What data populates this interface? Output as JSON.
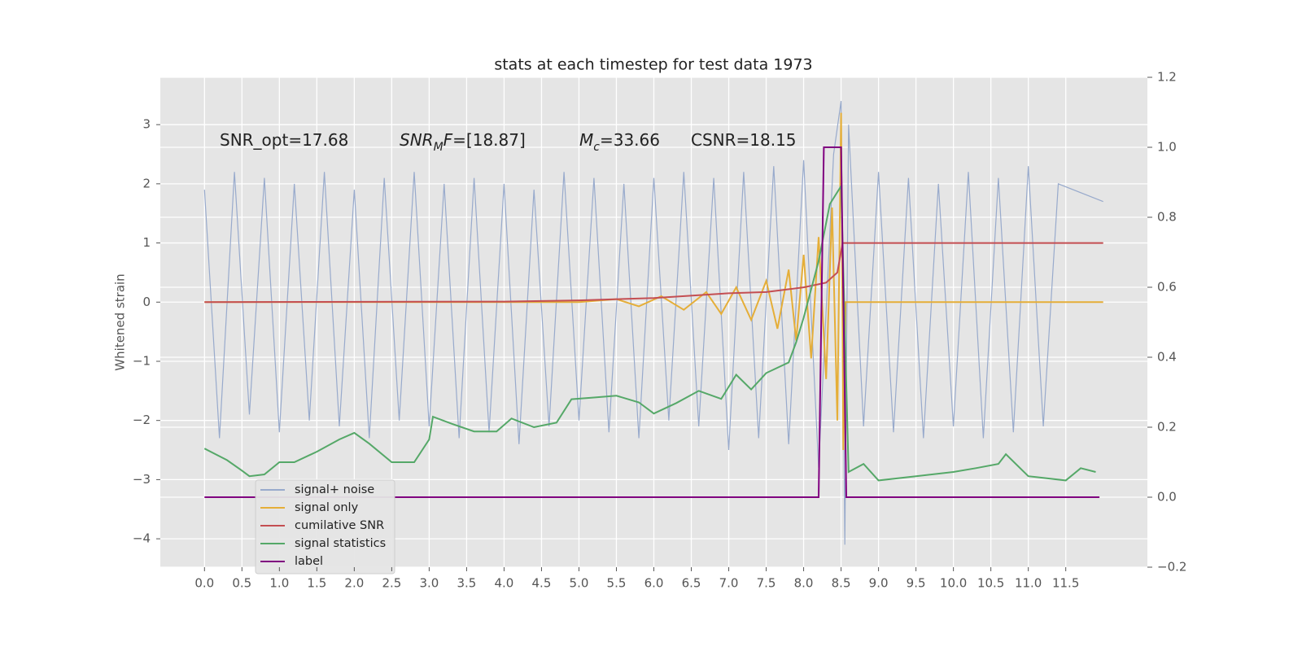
{
  "chart_data": {
    "type": "line",
    "title": "stats at each timestep for test data 1973",
    "ylabel": "Whitened strain",
    "annotations": [
      [
        {
          "text": "SNR_opt=17.68"
        }
      ],
      [
        {
          "text": "SNR",
          "style": "italic"
        },
        {
          "text": "M",
          "style": "italic-sub"
        },
        {
          "text": "F",
          "style": "italic"
        },
        {
          "text": "=[18.87]"
        }
      ],
      [
        {
          "text": "M",
          "style": "italic"
        },
        {
          "text": "c",
          "style": "italic-sub"
        },
        {
          "text": "=33.66"
        }
      ],
      [
        {
          "text": "CSNR=18.15"
        }
      ]
    ],
    "xlim": [
      -0.59,
      12.59
    ],
    "ylim": [
      -4.48,
      3.8
    ],
    "y2lim": [
      -0.2,
      1.2
    ],
    "xticks": [
      {
        "value": 0,
        "label": "0.0"
      },
      {
        "value": 0.5,
        "label": "0.5"
      },
      {
        "value": 1,
        "label": "1.0"
      },
      {
        "value": 1.5,
        "label": "1.5"
      },
      {
        "value": 2,
        "label": "2.0"
      },
      {
        "value": 2.5,
        "label": "2.5"
      },
      {
        "value": 3,
        "label": "3.0"
      },
      {
        "value": 3.5,
        "label": "3.5"
      },
      {
        "value": 4,
        "label": "4.0"
      },
      {
        "value": 4.5,
        "label": "4.5"
      },
      {
        "value": 5,
        "label": "5.0"
      },
      {
        "value": 5.5,
        "label": "5.5"
      },
      {
        "value": 6,
        "label": "6.0"
      },
      {
        "value": 6.5,
        "label": "6.5"
      },
      {
        "value": 7,
        "label": "7.0"
      },
      {
        "value": 7.5,
        "label": "7.5"
      },
      {
        "value": 8,
        "label": "8.0"
      },
      {
        "value": 8.5,
        "label": "8.5"
      },
      {
        "value": 9,
        "label": "9.0"
      },
      {
        "value": 9.5,
        "label": "9.5"
      },
      {
        "value": 10,
        "label": "10.0"
      },
      {
        "value": 10.5,
        "label": "10.5"
      },
      {
        "value": 11,
        "label": "11.0"
      },
      {
        "value": 11.5,
        "label": "11.5"
      }
    ],
    "yticks": [
      {
        "value": -4,
        "label": "−4"
      },
      {
        "value": -3,
        "label": "−3"
      },
      {
        "value": -2,
        "label": "−2"
      },
      {
        "value": -1,
        "label": "−1"
      },
      0,
      1,
      2,
      3
    ],
    "y2ticks": [
      {
        "value": -0.2,
        "label": "−0.2"
      },
      {
        "value": 0,
        "label": "0.0"
      },
      {
        "value": 0.2,
        "label": "0.2"
      },
      {
        "value": 0.4,
        "label": "0.4"
      },
      {
        "value": 0.6,
        "label": "0.6"
      },
      {
        "value": 0.8,
        "label": "0.8"
      },
      {
        "value": 1,
        "label": "1.0"
      },
      {
        "value": 1.2,
        "label": "1.2"
      }
    ],
    "grid": true,
    "legend": "lower left",
    "series": [
      {
        "name": "signal+ noise",
        "color": "#98aacc",
        "x": [
          0,
          0.2,
          0.4,
          0.6,
          0.8,
          1.0,
          1.2,
          1.4,
          1.6,
          1.8,
          2.0,
          2.2,
          2.4,
          2.6,
          2.8,
          3.0,
          3.2,
          3.4,
          3.6,
          3.8,
          4.0,
          4.2,
          4.4,
          4.6,
          4.8,
          5.0,
          5.2,
          5.4,
          5.6,
          5.8,
          6.0,
          6.2,
          6.4,
          6.6,
          6.8,
          7.0,
          7.2,
          7.4,
          7.6,
          7.8,
          8.0,
          8.2,
          8.4,
          8.5,
          8.55,
          8.6,
          8.8,
          9.0,
          9.2,
          9.4,
          9.6,
          9.8,
          10.0,
          10.2,
          10.4,
          10.6,
          10.8,
          11.0,
          11.2,
          11.4,
          12.0
        ],
        "values": [
          1.9,
          -2.3,
          2.2,
          -1.9,
          2.1,
          -2.2,
          2.0,
          -2.0,
          2.2,
          -2.1,
          1.9,
          -2.3,
          2.1,
          -2.0,
          2.2,
          -2.1,
          2.0,
          -2.3,
          2.1,
          -2.2,
          2.0,
          -2.4,
          1.9,
          -2.1,
          2.2,
          -2.0,
          2.1,
          -2.2,
          2.0,
          -2.3,
          2.1,
          -2.0,
          2.2,
          -2.1,
          2.1,
          -2.5,
          2.2,
          -2.3,
          2.3,
          -2.4,
          2.4,
          -2.8,
          2.5,
          3.4,
          -4.1,
          3.0,
          -2.1,
          2.2,
          -2.2,
          2.1,
          -2.3,
          2.0,
          -2.1,
          2.2,
          -2.3,
          2.1,
          -2.2,
          2.3,
          -2.1,
          2.0,
          1.7
        ]
      },
      {
        "name": "signal only",
        "color": "#e5ae38",
        "x": [
          0,
          5.0,
          5.5,
          5.8,
          6.1,
          6.4,
          6.7,
          6.9,
          7.1,
          7.3,
          7.5,
          7.65,
          7.8,
          7.9,
          8.0,
          8.1,
          8.2,
          8.3,
          8.38,
          8.45,
          8.5,
          8.53,
          8.56,
          12.0
        ],
        "values": [
          0,
          0,
          0.05,
          -0.07,
          0.1,
          -0.13,
          0.17,
          -0.2,
          0.25,
          -0.3,
          0.36,
          -0.45,
          0.55,
          -0.65,
          0.8,
          -0.95,
          1.1,
          -1.3,
          1.6,
          -2.0,
          3.2,
          -2.5,
          0,
          0
        ]
      },
      {
        "name": "cumilative SNR",
        "color": "#c44e52",
        "x": [
          0,
          4.0,
          5.0,
          6.0,
          7.0,
          7.5,
          8.0,
          8.3,
          8.45,
          8.52,
          12.0
        ],
        "values": [
          0,
          0.01,
          0.03,
          0.07,
          0.15,
          0.17,
          0.25,
          0.33,
          0.5,
          1.0,
          1.0
        ]
      },
      {
        "name": "signal statistics",
        "color": "#55a868",
        "axis": "y2",
        "x": [
          0,
          0.3,
          0.5,
          0.6,
          0.8,
          1.0,
          1.2,
          1.5,
          1.8,
          2.0,
          2.2,
          2.5,
          2.8,
          3.0,
          3.05,
          3.3,
          3.6,
          3.9,
          4.1,
          4.4,
          4.7,
          4.9,
          5.2,
          5.5,
          5.8,
          6.0,
          6.3,
          6.6,
          6.9,
          7.1,
          7.3,
          7.5,
          7.8,
          7.9,
          8.0,
          8.2,
          8.35,
          8.5,
          8.6,
          8.8,
          9.0,
          9.5,
          10.0,
          10.3,
          10.6,
          10.7,
          11.0,
          11.5,
          11.7,
          11.9
        ],
        "values": [
          0.139,
          0.106,
          0.076,
          0.06,
          0.065,
          0.1,
          0.1,
          0.13,
          0.165,
          0.184,
          0.153,
          0.1,
          0.1,
          0.165,
          0.23,
          0.21,
          0.188,
          0.188,
          0.225,
          0.2,
          0.213,
          0.28,
          0.285,
          0.29,
          0.271,
          0.239,
          0.269,
          0.304,
          0.281,
          0.35,
          0.308,
          0.355,
          0.385,
          0.443,
          0.513,
          0.675,
          0.838,
          0.889,
          0.072,
          0.095,
          0.048,
          0.06,
          0.072,
          0.083,
          0.095,
          0.123,
          0.06,
          0.048,
          0.083,
          0.072
        ]
      },
      {
        "name": "label",
        "color": "#800080",
        "axis": "y2",
        "x": [
          0,
          8.2,
          8.27,
          8.5,
          8.57,
          11.95
        ],
        "values": [
          0,
          0,
          1,
          1,
          0,
          0
        ]
      }
    ]
  }
}
